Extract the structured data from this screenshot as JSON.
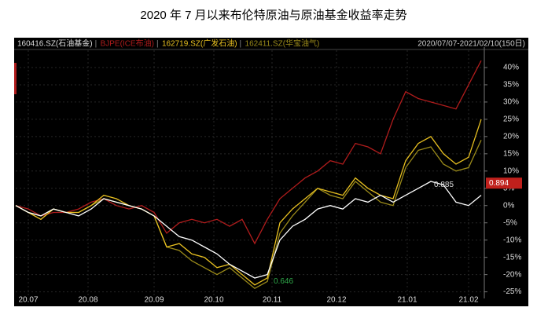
{
  "chart_data": {
    "type": "line",
    "title": "2020 年 7 月以来布伦特原油与原油基金收益率走势",
    "date_range": "2020/07/07-2021/02/10(150日)",
    "x": [
      0,
      4,
      8,
      12,
      16,
      20,
      24,
      28,
      32,
      36,
      40,
      44,
      48,
      52,
      56,
      60,
      64,
      68,
      72,
      76,
      80,
      84,
      88,
      92,
      96,
      100,
      104,
      108,
      112,
      116,
      120,
      124,
      128,
      132,
      136,
      140,
      144,
      148
    ],
    "xlim": [
      0,
      149
    ],
    "xticks": [
      {
        "value": 4,
        "label": "20.07"
      },
      {
        "value": 23,
        "label": "20.08"
      },
      {
        "value": 44,
        "label": "20.09"
      },
      {
        "value": 63,
        "label": "20.10"
      },
      {
        "value": 81.5,
        "label": "20.11"
      },
      {
        "value": 102,
        "label": "20.12"
      },
      {
        "value": 124.5,
        "label": "21.01"
      },
      {
        "value": 144,
        "label": "21.02"
      }
    ],
    "ylim": [
      -26,
      45
    ],
    "yticks": [
      {
        "value": 40,
        "label": "40%"
      },
      {
        "value": 35,
        "label": "35%"
      },
      {
        "value": 30,
        "label": "30%"
      },
      {
        "value": 25,
        "label": "25%"
      },
      {
        "value": 20,
        "label": "20%"
      },
      {
        "value": 15,
        "label": "15%"
      },
      {
        "value": 10,
        "label": "10%"
      },
      {
        "value": 5,
        "label": "5%"
      },
      {
        "value": 0,
        "label": "0%"
      },
      {
        "value": -5,
        "label": "-5%"
      },
      {
        "value": -10,
        "label": "-10%"
      },
      {
        "value": -15,
        "label": "-15%"
      },
      {
        "value": -20,
        "label": "-20%"
      },
      {
        "value": -25,
        "label": "-25%"
      }
    ],
    "grid": true,
    "series": [
      {
        "name": "160416.SZ(石油基金)",
        "color": "#ffffff",
        "values": [
          0,
          -2,
          -3,
          -1,
          -2,
          -3,
          -1,
          2,
          1,
          0,
          -1,
          -3,
          -6,
          -9,
          -10,
          -12,
          -14,
          -17,
          -19,
          -21,
          -20,
          -10,
          -6,
          -4,
          -1,
          0,
          -1,
          2,
          1,
          3,
          1,
          3,
          5,
          7,
          6,
          1,
          0,
          3
        ]
      },
      {
        "name": "BJPE(ICE布油)",
        "color": "#b01c1c",
        "values": [
          0,
          -1,
          -3,
          -2,
          -2,
          -1,
          1,
          2,
          0,
          -1,
          0,
          -2,
          -8,
          -5,
          -4,
          -5,
          -4,
          -6,
          -4,
          -11,
          -4,
          2,
          5,
          8,
          10,
          13,
          12,
          18,
          17,
          15,
          25,
          33,
          31,
          30,
          29,
          28,
          35,
          42
        ]
      },
      {
        "name": "162719.SZ(广发石油)",
        "color": "#e8c020",
        "values": [
          0,
          -2,
          -4,
          -1,
          -2,
          -2,
          0,
          3,
          2,
          0,
          -1,
          -3,
          -12,
          -11,
          -14,
          -15,
          -18,
          -17,
          -20,
          -23,
          -21,
          -5,
          -1,
          2,
          5,
          4,
          3,
          8,
          5,
          3,
          2,
          13,
          18,
          20,
          15,
          12,
          14,
          25
        ]
      },
      {
        "name": "162411.SZ(华宝油气)",
        "color": "#9a8a1a",
        "values": [
          0,
          -2,
          -3,
          -1,
          -2,
          -2,
          0,
          2,
          1,
          0,
          -1,
          -3,
          -12,
          -13,
          -16,
          -18,
          -20,
          -18,
          -21,
          -24,
          -22,
          -8,
          -3,
          1,
          5,
          3,
          2,
          7,
          4,
          1,
          0,
          11,
          16,
          17,
          12,
          10,
          11,
          19
        ]
      }
    ],
    "annotations": [
      {
        "text": "0.885",
        "x": 132,
        "y": 6
      },
      {
        "text": "0.646",
        "x": 81,
        "y": -22
      }
    ],
    "last_value_label": {
      "text": "0.894",
      "y": 6.5
    }
  }
}
